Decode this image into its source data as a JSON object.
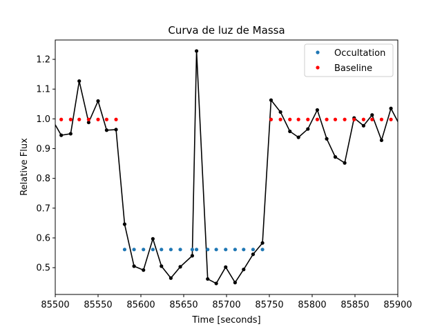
{
  "chart_data": {
    "type": "line",
    "title": "Curva de luz de Massa",
    "xlabel": "Time [seconds]",
    "ylabel": "Relative Flux",
    "xlim": [
      85500,
      85900
    ],
    "ylim": [
      0.41,
      1.265
    ],
    "xticks": [
      85500,
      85550,
      85600,
      85650,
      85700,
      85750,
      85800,
      85850,
      85900
    ],
    "yticks": [
      0.5,
      0.6,
      0.7,
      0.8,
      0.9,
      1.0,
      1.1,
      1.2
    ],
    "ytick_labels": [
      "0.5",
      "0.6",
      "0.7",
      "0.8",
      "0.9",
      "1.0",
      "1.1",
      "1.2"
    ],
    "grid": false,
    "legend_position": "top-right",
    "series": [
      {
        "name": "",
        "style": "line-markers",
        "color": "#000000",
        "x": [
          85496,
          85507,
          85518,
          85528,
          85539,
          85550,
          85560,
          85571,
          85581,
          85592,
          85603,
          85614,
          85624,
          85635,
          85646,
          85660,
          85665,
          85678,
          85688,
          85699,
          85710,
          85720,
          85731,
          85742,
          85752,
          85763,
          85774,
          85784,
          85795,
          85806,
          85817,
          85827,
          85838,
          85849,
          85860,
          85870,
          85881,
          85892,
          85902
        ],
        "y": [
          1.0,
          0.945,
          0.95,
          1.127,
          0.988,
          1.06,
          0.962,
          0.964,
          0.646,
          0.505,
          0.492,
          0.597,
          0.505,
          0.465,
          0.503,
          0.54,
          1.228,
          0.462,
          0.447,
          0.502,
          0.45,
          0.494,
          0.545,
          0.583,
          1.063,
          1.023,
          0.958,
          0.938,
          0.966,
          1.03,
          0.933,
          0.872,
          0.852,
          1.003,
          0.977,
          1.013,
          0.928,
          1.035,
          0.98
        ]
      },
      {
        "name": "Occultation",
        "style": "markers",
        "color": "#1f77b4",
        "x": [
          85581,
          85592,
          85603,
          85614,
          85624,
          85635,
          85646,
          85660,
          85665,
          85678,
          85688,
          85699,
          85710,
          85720,
          85731,
          85742
        ],
        "y": [
          0.561,
          0.561,
          0.561,
          0.561,
          0.561,
          0.561,
          0.561,
          0.561,
          0.561,
          0.561,
          0.561,
          0.561,
          0.561,
          0.561,
          0.561,
          0.561
        ]
      },
      {
        "name": "Baseline",
        "style": "markers",
        "color": "#ff0000",
        "x": [
          85507,
          85518,
          85528,
          85539,
          85550,
          85560,
          85571,
          85752,
          85763,
          85774,
          85784,
          85795,
          85806,
          85817,
          85827,
          85838,
          85849,
          85860,
          85870,
          85881,
          85892
        ],
        "y": [
          0.998,
          0.998,
          0.998,
          0.998,
          0.998,
          0.998,
          0.998,
          0.998,
          0.998,
          0.998,
          0.998,
          0.998,
          0.998,
          0.998,
          0.998,
          0.998,
          0.998,
          0.998,
          0.998,
          0.998,
          0.998
        ]
      }
    ]
  }
}
